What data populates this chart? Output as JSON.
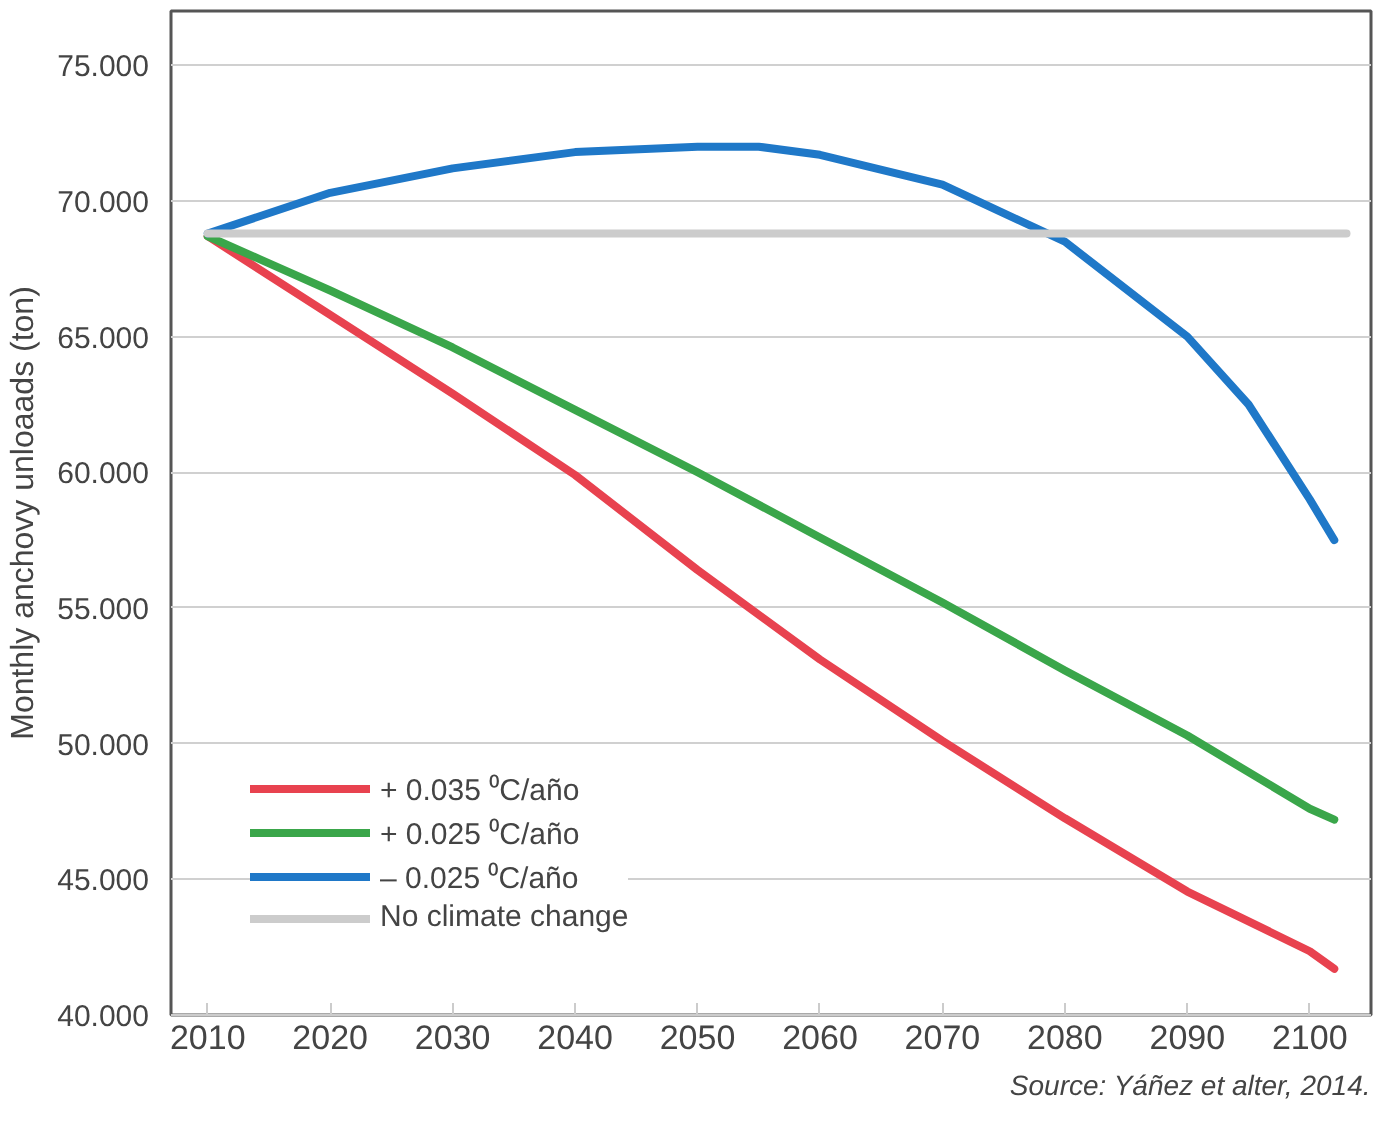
{
  "chart_data": {
    "type": "line",
    "ylabel": "Monthly anchovy unloaads (ton)",
    "annotations": [
      "Source: Yáñez et alter, 2014."
    ],
    "xlim": [
      2007,
      2105
    ],
    "xticks": [
      2010,
      2020,
      2030,
      2040,
      2050,
      2060,
      2070,
      2080,
      2090,
      2100
    ],
    "ylim": [
      40,
      77
    ],
    "yticks": [
      {
        "value": 40,
        "label": "40.000"
      },
      {
        "value": 45,
        "label": "45.000"
      },
      {
        "value": 50,
        "label": "50.000"
      },
      {
        "value": 55,
        "label": "55.000"
      },
      {
        "value": 60,
        "label": "60.000"
      },
      {
        "value": 65,
        "label": "65.000"
      },
      {
        "value": 70,
        "label": "70.000"
      },
      {
        "value": 75,
        "label": "75.000"
      }
    ],
    "grid": "y",
    "legend": "bottom left",
    "line_style": "solid",
    "marker": "none",
    "series": [
      {
        "name": "+ 0.035 ⁰C/año",
        "color": "#e8424f",
        "x": [
          2010,
          2020,
          2030,
          2040,
          2050,
          2060,
          2070,
          2080,
          2090,
          2100,
          2102
        ],
        "values": [
          68.7,
          65.8,
          62.9,
          59.9,
          56.4,
          53.1,
          50.1,
          47.25,
          44.55,
          42.35,
          41.7
        ]
      },
      {
        "name": "+ 0.025 ⁰C/año",
        "color": "#3aa64a",
        "x": [
          2010,
          2020,
          2030,
          2040,
          2050,
          2060,
          2070,
          2080,
          2090,
          2100,
          2102
        ],
        "values": [
          68.7,
          66.7,
          64.6,
          62.3,
          60.0,
          57.6,
          55.2,
          52.7,
          50.3,
          47.6,
          47.2
        ]
      },
      {
        "name": "– 0.025 ⁰C/año",
        "color": "#1f78c8",
        "x": [
          2010,
          2020,
          2030,
          2040,
          2050,
          2055,
          2060,
          2070,
          2080,
          2090,
          2095,
          2100,
          2102
        ],
        "values": [
          68.8,
          70.3,
          71.2,
          71.8,
          72.0,
          72.0,
          71.7,
          70.6,
          68.5,
          65.0,
          62.5,
          59.0,
          57.5
        ]
      },
      {
        "name": "No climate change",
        "color": "#cccccc",
        "x": [
          2010,
          2103
        ],
        "values": [
          68.8,
          68.8
        ]
      }
    ]
  }
}
